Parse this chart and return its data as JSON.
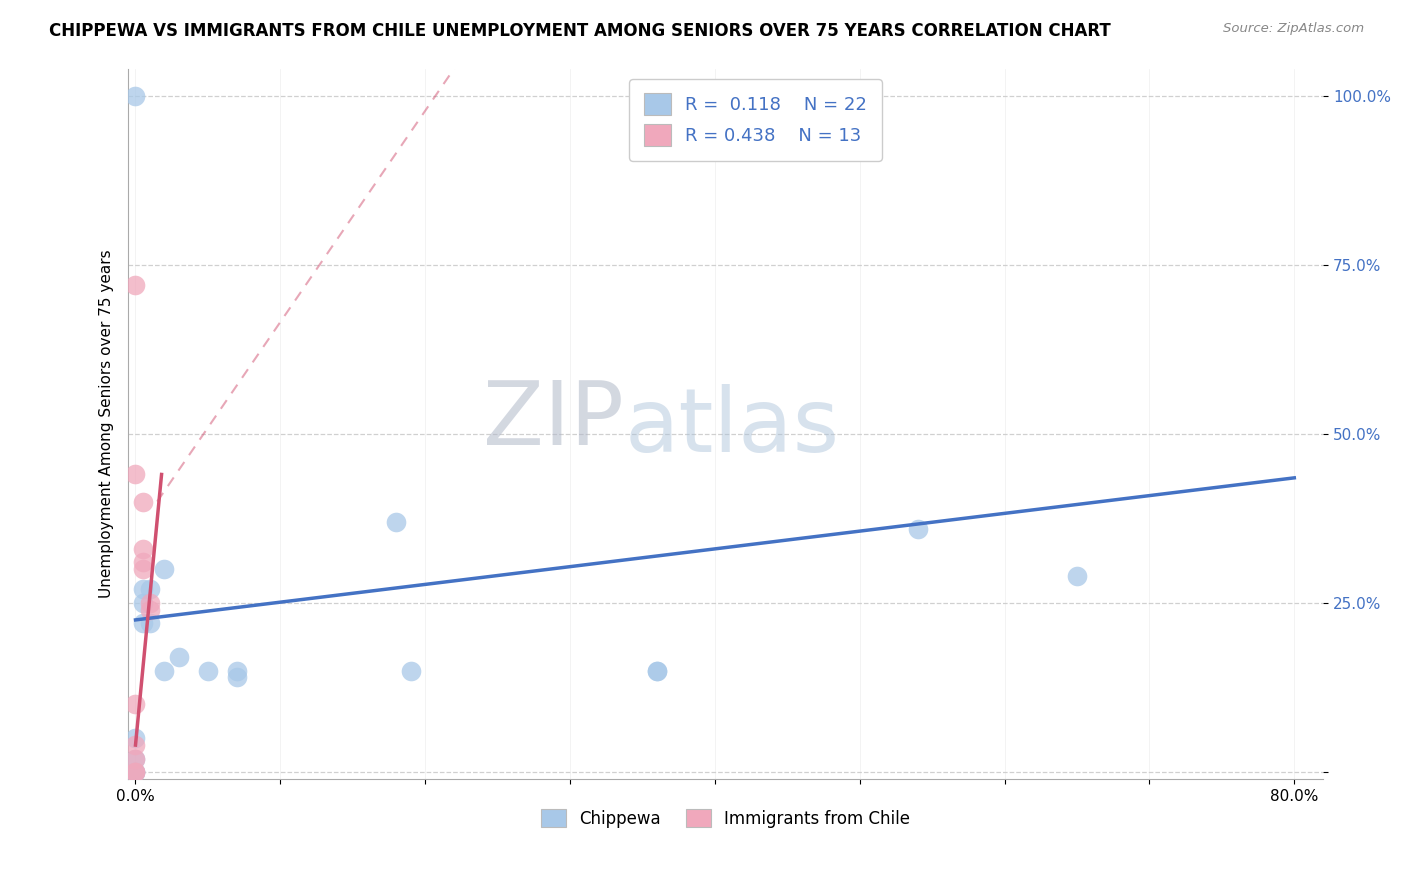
{
  "title": "CHIPPEWA VS IMMIGRANTS FROM CHILE UNEMPLOYMENT AMONG SENIORS OVER 75 YEARS CORRELATION CHART",
  "source": "Source: ZipAtlas.com",
  "ylabel": "Unemployment Among Seniors over 75 years",
  "xlim": [
    -0.005,
    0.82
  ],
  "ylim": [
    -0.01,
    1.04
  ],
  "ytick_positions": [
    0.0,
    0.25,
    0.5,
    0.75,
    1.0
  ],
  "yticklabels": [
    "",
    "25.0%",
    "50.0%",
    "75.0%",
    "100.0%"
  ],
  "xtick_positions": [
    0.0,
    0.1,
    0.2,
    0.3,
    0.4,
    0.5,
    0.6,
    0.7,
    0.8
  ],
  "xticklabels": [
    "0.0%",
    "",
    "",
    "",
    "",
    "",
    "",
    "",
    "80.0%"
  ],
  "chippewa_R": 0.118,
  "chippewa_N": 22,
  "chile_R": 0.438,
  "chile_N": 13,
  "chippewa_color": "#a8c8e8",
  "chile_color": "#f0a8bc",
  "chippewa_line_color": "#4472c4",
  "chile_line_color": "#d05070",
  "grid_color": "#d0d0d0",
  "chippewa_x": [
    0.0,
    0.0,
    0.0,
    0.0,
    0.005,
    0.005,
    0.005,
    0.01,
    0.01,
    0.02,
    0.02,
    0.03,
    0.05,
    0.07,
    0.07,
    0.18,
    0.19,
    0.36,
    0.36,
    0.54,
    0.65,
    0.0
  ],
  "chippewa_y": [
    0.0,
    0.0,
    0.02,
    0.05,
    0.22,
    0.25,
    0.27,
    0.22,
    0.27,
    0.3,
    0.15,
    0.17,
    0.15,
    0.14,
    0.15,
    0.37,
    0.15,
    0.15,
    0.15,
    0.36,
    0.29,
    1.0
  ],
  "chile_x": [
    0.0,
    0.0,
    0.0,
    0.0,
    0.0,
    0.0,
    0.005,
    0.005,
    0.005,
    0.005,
    0.01,
    0.01,
    0.0
  ],
  "chile_y": [
    0.0,
    0.0,
    0.02,
    0.04,
    0.1,
    0.72,
    0.3,
    0.31,
    0.33,
    0.4,
    0.24,
    0.25,
    0.44
  ],
  "blue_line": [
    0.0,
    0.225,
    0.8,
    0.435
  ],
  "pink_line_solid": [
    0.0,
    0.04,
    0.018,
    0.44
  ],
  "pink_line_dash": [
    0.015,
    0.4,
    0.22,
    1.04
  ],
  "watermark_zip": "ZIP",
  "watermark_atlas": "atlas",
  "legend_R1": "R =  0.118",
  "legend_N1": "N = 22",
  "legend_R2": "R = 0.438",
  "legend_N2": "N = 13",
  "bottom_legend": [
    "Chippewa",
    "Immigrants from Chile"
  ]
}
